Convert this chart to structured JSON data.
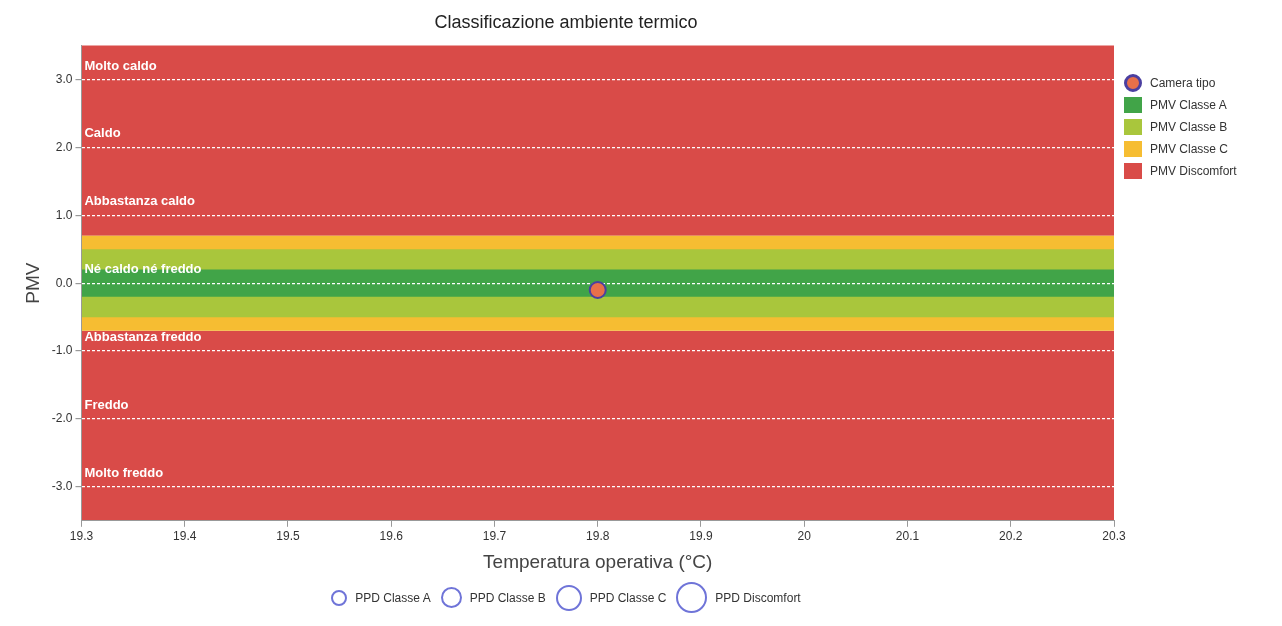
{
  "chart_data": {
    "type": "scatter",
    "title": "Classificazione ambiente termico",
    "xlabel": "Temperatura operativa (°C)",
    "ylabel": "PMV",
    "xlim": [
      19.3,
      20.3
    ],
    "xticks": [
      19.3,
      19.4,
      19.5,
      19.6,
      19.7,
      19.8,
      19.9,
      20,
      20.1,
      20.2,
      20.3
    ],
    "ylim": [
      -3.5,
      3.5
    ],
    "yticks": [
      {
        "value": 3,
        "label": "3.0"
      },
      {
        "value": 2,
        "label": "2.0"
      },
      {
        "value": 1,
        "label": "1.0"
      },
      {
        "value": 0,
        "label": "0.0"
      },
      {
        "value": -1,
        "label": "-1.0"
      },
      {
        "value": -2,
        "label": "-2.0"
      },
      {
        "value": -3,
        "label": "-3.0"
      }
    ],
    "grid": "y",
    "legend": "right",
    "marker": "circle",
    "series": [
      {
        "name": "Camera tipo",
        "color": "#e8704a",
        "x": [
          19.8
        ],
        "values": [
          -0.1
        ]
      },
      {
        "name": "PPD Classe A",
        "type": "bubble"
      },
      {
        "name": "PPD Classe B",
        "type": "bubble"
      },
      {
        "name": "PPD Classe C",
        "type": "bubble"
      },
      {
        "name": "PPD Discomfort",
        "type": "bubble"
      }
    ],
    "bands": [
      {
        "axis": "y",
        "from": 0.7,
        "to": 3.5,
        "label": "PMV Discomfort",
        "color": "#d94b48"
      },
      {
        "axis": "y",
        "from": -3.5,
        "to": -0.7,
        "color": "#d94b48"
      },
      {
        "axis": "y",
        "from": -0.7,
        "to": 0.7,
        "label": "PMV Classe C",
        "color": "#f6bd32"
      },
      {
        "axis": "y",
        "from": -0.5,
        "to": 0.5,
        "label": "PMV Classe B",
        "color": "#a9c63c"
      },
      {
        "axis": "y",
        "from": -0.2,
        "to": 0.2,
        "label": "PMV Classe A",
        "color": "#41a448"
      }
    ],
    "annotations": [
      "Molto caldo",
      "Caldo",
      "Abbastanza caldo",
      "Né caldo né freddo",
      "Abbastanza freddo",
      "Freddo",
      "Molto freddo"
    ]
  }
}
